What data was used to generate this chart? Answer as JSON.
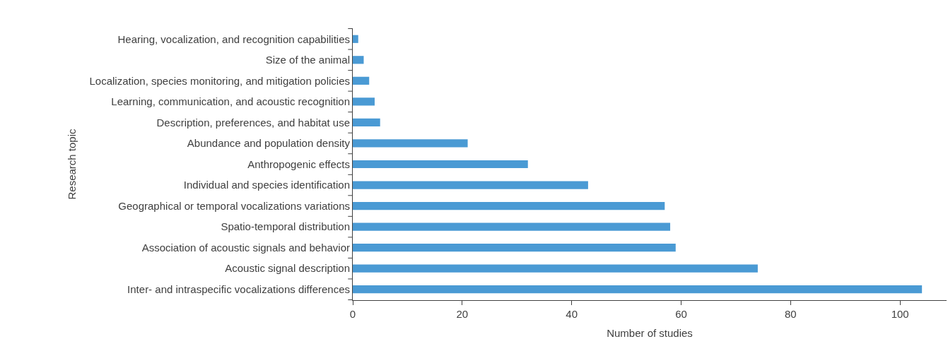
{
  "chart_data": {
    "type": "bar",
    "orientation": "horizontal",
    "xlabel": "Number of studies",
    "ylabel": "Research topic",
    "categories": [
      "Hearing, vocalization, and recognition capabilities",
      "Size of the animal",
      "Localization, species monitoring, and mitigation policies",
      "Learning, communication, and acoustic recognition",
      "Description, preferences, and habitat use",
      "Abundance and population density",
      "Anthropogenic effects",
      "Individual and species identification",
      "Geographical or temporal vocalizations variations",
      "Spatio-temporal distribution",
      "Association of acoustic signals and behavior",
      "Acoustic signal description",
      "Inter- and intraspecific vocalizations differences"
    ],
    "values": [
      1,
      2,
      3,
      4,
      5,
      21,
      32,
      43,
      57,
      58,
      59,
      74,
      104
    ],
    "color": "#4a9ad4",
    "xlim": [
      0,
      108.5
    ],
    "xticks": [
      0,
      20,
      40,
      60,
      80,
      100
    ]
  }
}
